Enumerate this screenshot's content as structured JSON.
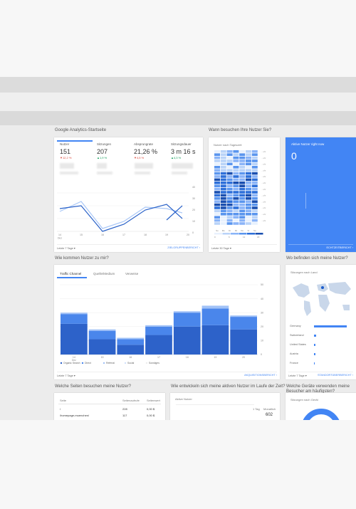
{
  "sections": {
    "home": "Google Analytics-Startseite",
    "when": "Wann besuchen Ihre Nutzer Sie?",
    "acquisition": "Wie kommen Nutzer zu mir?",
    "where": "Wo befinden sich meine Nutzer?",
    "pages": "Welche Seiten besuchen meine Nutzer?",
    "active_trend": "Wie entwickeln sich meine aktiven Nutzer im Laufe der Zeit?",
    "devices": "Welche Geräte verwenden meine Besucher am häufigsten?"
  },
  "metrics": [
    {
      "label": "Nutzer",
      "value": "151",
      "delta": "▼12,2 %"
    },
    {
      "label": "Sitzungen",
      "value": "207",
      "delta": "▲1,9 %"
    },
    {
      "label": "Absprungrate",
      "value": "21,26 %",
      "delta": "▼4,5 %"
    },
    {
      "label": "Sitzungsdauer",
      "value": "3 m 16 s",
      "delta": "▲4,3 %"
    }
  ],
  "overview": {
    "x_labels": [
      "14\nDez",
      "15",
      "16",
      "17",
      "18",
      "19",
      "20"
    ],
    "y_right": [
      "40",
      "30",
      "20",
      "10",
      "0"
    ],
    "date_range": "Letzte 7 Tage ▾",
    "report_link": "ZIELGRUPPENBERICHT"
  },
  "heatmap": {
    "title": "Nutzer nach Tageszeit",
    "days": [
      "So",
      "Mo",
      "Di",
      "Mi",
      "Do",
      "Fr",
      "Sa"
    ],
    "legend": [
      "0",
      "6",
      "12",
      "18"
    ],
    "date_range": "Letzte 30 Tage ▾"
  },
  "realtime": {
    "title": "Aktive Nutzer right now",
    "value": "0",
    "report_link": "ECHTZEITBERICHT"
  },
  "acquisition": {
    "tabs": [
      "Traffic Channel",
      "Quelle/Medium",
      "Verweise"
    ],
    "legend": [
      "Organic Search",
      "Direct",
      "Referral",
      "Social",
      "Sonstiges"
    ],
    "date_range": "Letzte 7 Tage ▾",
    "report_link": "AKQUISITIONSBERICHT"
  },
  "chart_data": {
    "type": "bar",
    "categories": [
      "14 Dez",
      "15",
      "16",
      "17",
      "18",
      "19",
      "20"
    ],
    "series": [
      {
        "name": "Organic Search",
        "values": [
          22,
          11,
          7,
          14,
          20,
          21,
          18
        ]
      },
      {
        "name": "Direct",
        "values": [
          7,
          6,
          4,
          6,
          10,
          12,
          9
        ]
      },
      {
        "name": "Referral",
        "values": [
          1,
          1,
          1,
          1,
          1,
          2,
          1
        ]
      },
      {
        "name": "Social",
        "values": [
          0,
          0,
          0,
          0,
          0,
          0,
          0
        ]
      },
      {
        "name": "Sonstiges",
        "values": [
          0,
          0,
          0,
          0,
          0,
          0,
          0
        ]
      }
    ],
    "ylim": [
      0,
      50
    ],
    "yticks": [
      "50",
      "40",
      "30",
      "20",
      "10",
      "0"
    ],
    "legend": "bottom-left",
    "grid": true
  },
  "geo": {
    "title": "Sitzungen nach Land",
    "countries": [
      "Germany",
      "Switzerland",
      "United States",
      "Austria",
      "France"
    ],
    "shares": [
      1.0,
      0.06,
      0.05,
      0.04,
      0.03
    ],
    "date_range": "Letzte 7 Tage ▾",
    "report_link": "STANDORTÜBERBERICHT"
  },
  "pages_table": {
    "headers": [
      "Seite",
      "Seitenaufrufe",
      "Seitenwert"
    ],
    "rows": [
      [
        "/",
        "228",
        "0,00 $"
      ],
      [
        "/homepage-muenchen/",
        "117",
        "0,00 $"
      ]
    ]
  },
  "active_users": {
    "title": "Aktive Nutzer",
    "label": "1 Tag",
    "month_label": "Monatlich",
    "value": "602"
  },
  "device": {
    "title": "Sitzungen nach Gerät"
  },
  "colors": {
    "accent": "#4285f4",
    "dark_blue": "#1a5ccc",
    "mid_blue": "#3a7fe6",
    "light_blue": "#8ab4f8",
    "red": "#db4437",
    "green": "#0f9d58"
  }
}
